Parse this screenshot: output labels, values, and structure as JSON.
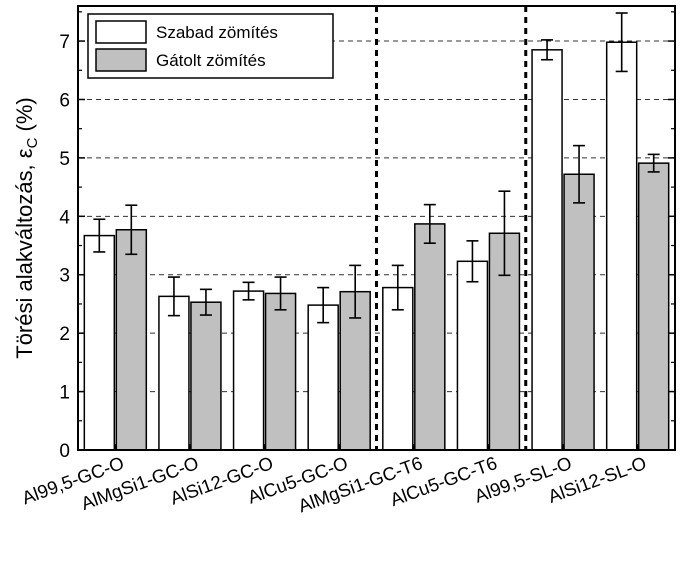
{
  "chart_data": {
    "type": "bar",
    "ylabel": {
      "prefix": "Törési alakváltozás, ",
      "symbol": "ε",
      "subscript": "C",
      "suffix": " (%)"
    },
    "xlabel": "",
    "ylim": [
      0,
      7.6
    ],
    "yticks": [
      0,
      1,
      2,
      3,
      4,
      5,
      6,
      7
    ],
    "grid": true,
    "legend_position": "top-left",
    "categories": [
      "Al99,5-GC-O",
      "AlMgSi1-GC-O",
      "AlSi12-GC-O",
      "AlCu5-GC-O",
      "AlMgSi1-GC-T6",
      "AlCu5-GC-T6",
      "Al99,5-SL-O",
      "AlSi12-SL-O"
    ],
    "series": [
      {
        "name": "Szabad zömítés",
        "color": "#ffffff",
        "values": [
          3.67,
          2.63,
          2.72,
          2.48,
          2.78,
          3.23,
          6.85,
          6.98
        ],
        "err": [
          0.28,
          0.33,
          0.15,
          0.3,
          0.38,
          0.35,
          0.17,
          0.5
        ]
      },
      {
        "name": "Gátolt zömítés",
        "color": "#c0c0c0",
        "values": [
          3.77,
          2.53,
          2.68,
          2.71,
          3.87,
          3.71,
          4.72,
          4.91
        ],
        "err": [
          0.42,
          0.22,
          0.28,
          0.45,
          0.33,
          0.72,
          0.49,
          0.15
        ]
      }
    ],
    "separators_after_category": [
      3,
      5
    ]
  }
}
